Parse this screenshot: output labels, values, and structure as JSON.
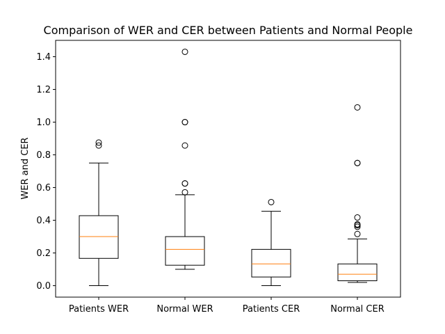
{
  "chart_data": {
    "type": "boxplot",
    "title": "Comparison of WER and CER between Patients and Normal People",
    "xlabel": "",
    "ylabel": "WER and CER",
    "ylim": [
      -0.07,
      1.5
    ],
    "yticks": [
      "0.0",
      "0.2",
      "0.4",
      "0.6",
      "0.8",
      "1.0",
      "1.2",
      "1.4"
    ],
    "categories": [
      "Patients WER",
      "Normal WER",
      "Patients CER",
      "Normal CER"
    ],
    "grid": false,
    "colors": {
      "box": "#000000",
      "median": "#ff7f0e",
      "outlier": "#000000"
    },
    "boxes": [
      {
        "name": "Patients WER",
        "whisker_low": 0.0,
        "q1": 0.167,
        "median": 0.3,
        "q3": 0.428,
        "whisker_high": 0.75,
        "outliers": [
          0.857,
          0.875
        ]
      },
      {
        "name": "Normal WER",
        "whisker_low": 0.1,
        "q1": 0.125,
        "median": 0.222,
        "q3": 0.3,
        "whisker_high": 0.556,
        "outliers": [
          0.571,
          0.625,
          0.625,
          0.857,
          1.0,
          1.0,
          1.43
        ]
      },
      {
        "name": "Patients CER",
        "whisker_low": 0.0,
        "q1": 0.053,
        "median": 0.133,
        "q3": 0.222,
        "whisker_high": 0.455,
        "outliers": [
          0.511
        ]
      },
      {
        "name": "Normal CER",
        "whisker_low": 0.02,
        "q1": 0.03,
        "median": 0.07,
        "q3": 0.133,
        "whisker_high": 0.286,
        "outliers": [
          0.316,
          0.36,
          0.37,
          0.375,
          0.417,
          0.75,
          0.75,
          1.09
        ]
      }
    ]
  }
}
